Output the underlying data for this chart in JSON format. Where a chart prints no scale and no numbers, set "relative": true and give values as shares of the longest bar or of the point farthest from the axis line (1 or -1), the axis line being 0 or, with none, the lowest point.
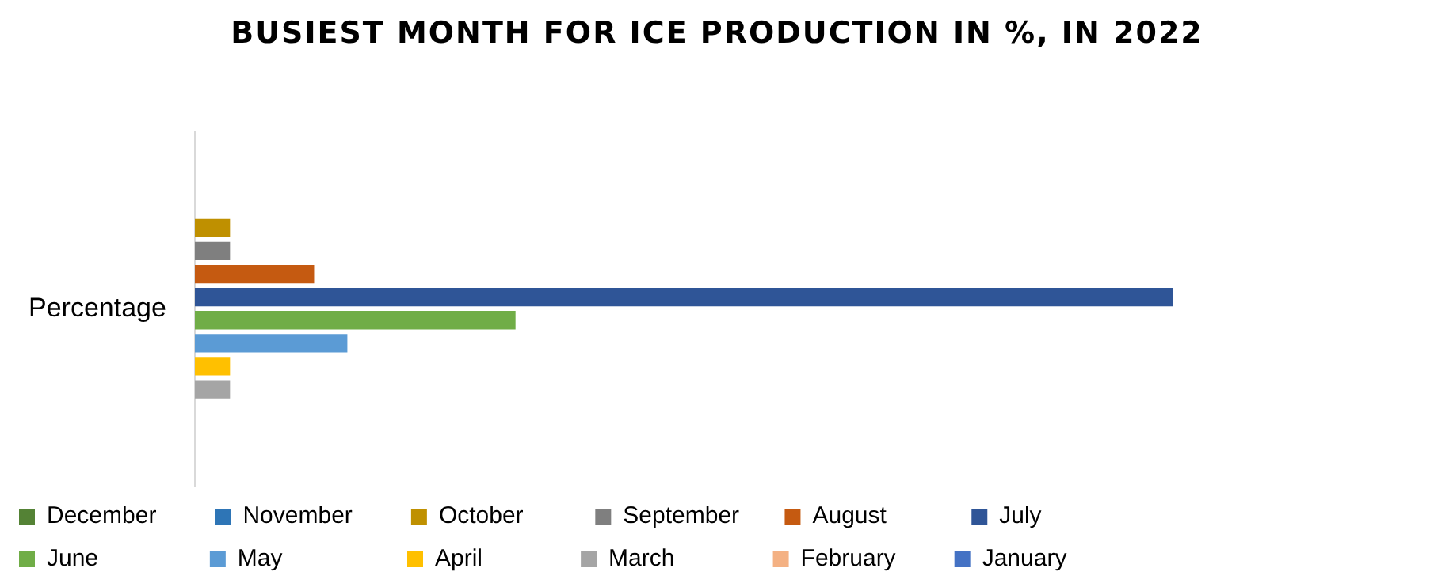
{
  "chart_data": {
    "type": "bar",
    "orientation": "horizontal",
    "relative": true,
    "title": "BUSIEST MONTH FOR ICE PRODUCTION IN %, IN 2022",
    "categories": [
      "Percentage"
    ],
    "legend": "bottom",
    "series": [
      {
        "name": "December",
        "color": "#548235",
        "values": [
          0
        ]
      },
      {
        "name": "November",
        "color": "#2e75b6",
        "values": [
          0
        ]
      },
      {
        "name": "October",
        "color": "#bf9000",
        "values": [
          0.036
        ]
      },
      {
        "name": "September",
        "color": "#7f7f7f",
        "values": [
          0.036
        ]
      },
      {
        "name": "August",
        "color": "#c55a11",
        "values": [
          0.122
        ]
      },
      {
        "name": "July",
        "color": "#2f5597",
        "values": [
          1
        ]
      },
      {
        "name": "June",
        "color": "#70ad47",
        "values": [
          0.328
        ]
      },
      {
        "name": "May",
        "color": "#5b9bd5",
        "values": [
          0.156
        ]
      },
      {
        "name": "April",
        "color": "#ffc000",
        "values": [
          0.036
        ]
      },
      {
        "name": "March",
        "color": "#a5a5a5",
        "values": [
          0.036
        ]
      },
      {
        "name": "February",
        "color": "#f4b183",
        "values": [
          0
        ]
      },
      {
        "name": "January",
        "color": "#4472c4",
        "values": [
          0
        ]
      }
    ]
  }
}
